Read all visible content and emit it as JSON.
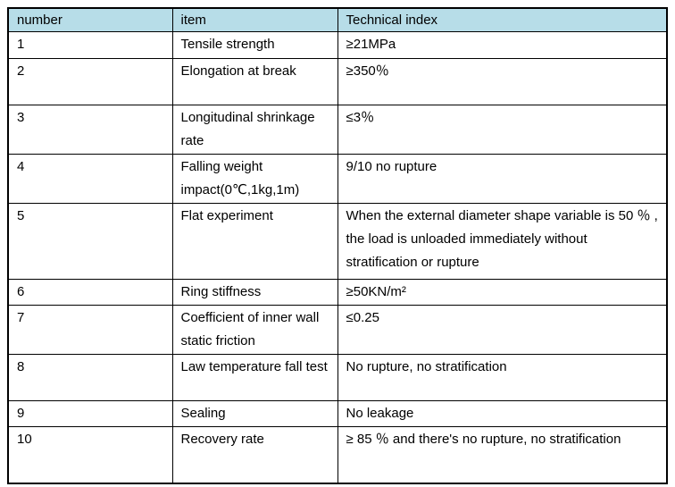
{
  "table": {
    "header_bg": "#b7dde8",
    "border_color": "#000000",
    "columns": {
      "number": "number",
      "item": "item",
      "index": "Technical index"
    },
    "rows": [
      {
        "number": "1",
        "item": "Tensile strength",
        "index": "≥21MPa"
      },
      {
        "number": "2",
        "item": "Elongation at break",
        "index": "≥350％"
      },
      {
        "number": "3",
        "item": "Longitudinal shrinkage rate",
        "index": "≤3％"
      },
      {
        "number": "4",
        "item": "Falling weight impact(0℃,1kg,1m)",
        "index": "9/10 no rupture"
      },
      {
        "number": "5",
        "item": "Flat experiment",
        "index": "When the external diameter shape variable is 50 ％ , the load is unloaded immediately without stratification or rupture"
      },
      {
        "number": "6",
        "item": "Ring stiffness",
        "index": "≥50KN/m²"
      },
      {
        "number": "7",
        "item": "Coefficient of inner wall static friction",
        "index": "≤0.25"
      },
      {
        "number": "8",
        "item": "Law temperature fall test",
        "index": "No rupture, no stratification"
      },
      {
        "number": "9",
        "item": "Sealing",
        "index": "No leakage"
      },
      {
        "number": "10",
        "item": "Recovery rate",
        "index": "≥ 85 ％  and there's no rupture, no stratification"
      }
    ]
  }
}
